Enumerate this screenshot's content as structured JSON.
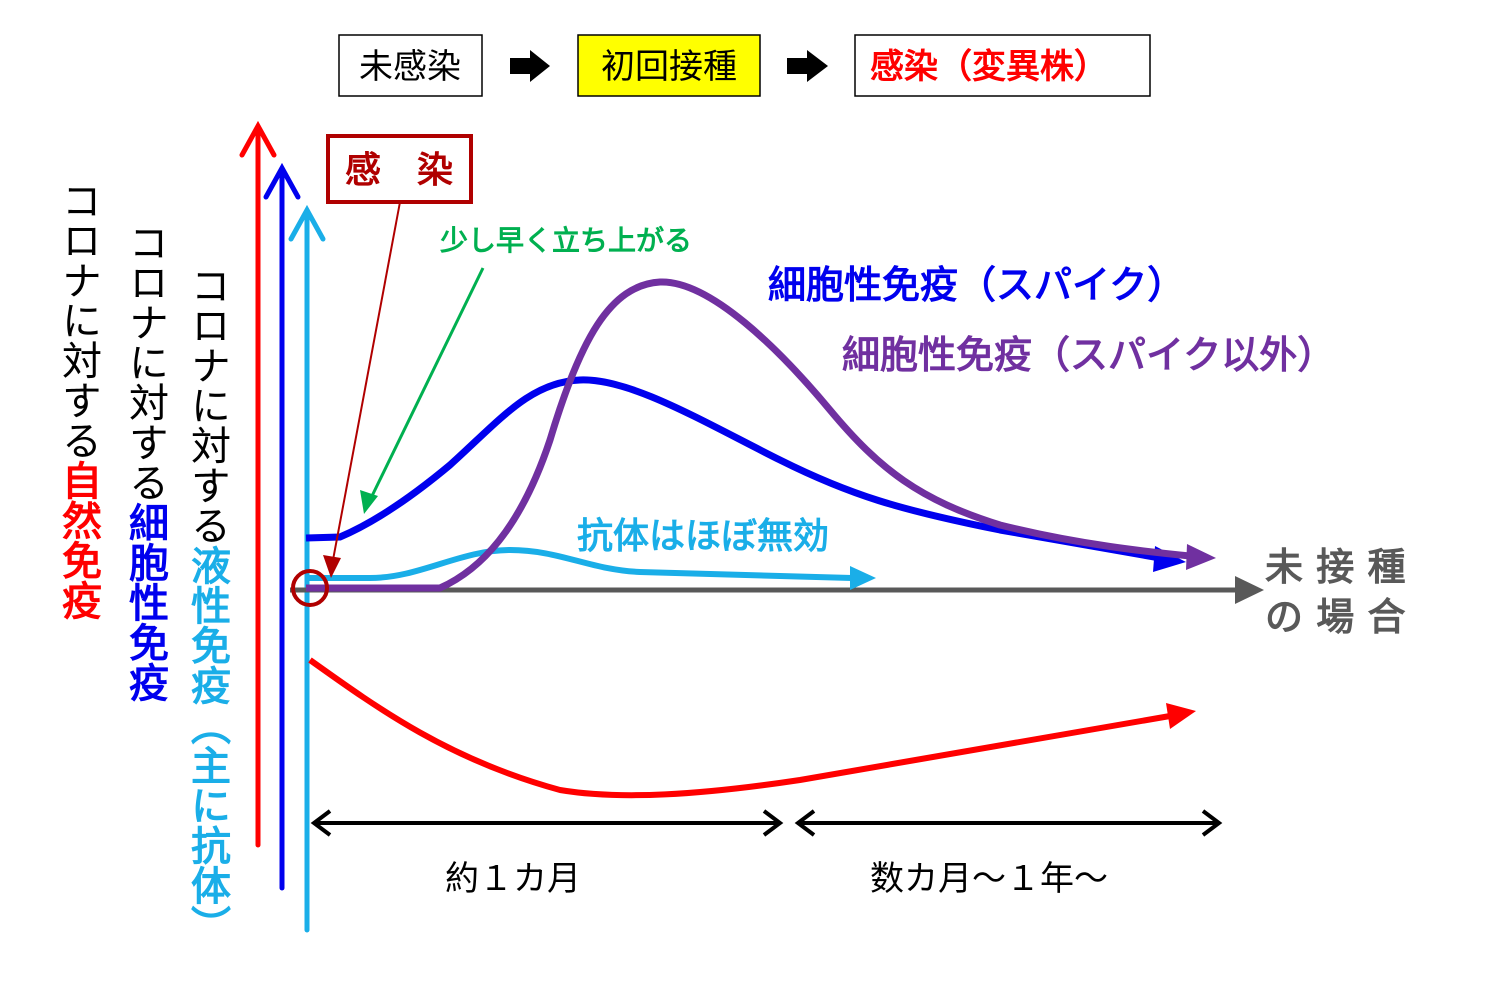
{
  "flow": {
    "step1": "未感染",
    "step2": "初回接種",
    "step3": "感染（変異株）",
    "arrow_icon": "right-arrow"
  },
  "y_axes": {
    "innate": {
      "prefix": "コロナに対する",
      "label": "自然免疫",
      "color": "#ff0000"
    },
    "cellular": {
      "prefix": "コロナに対する",
      "label": "細胞性免疫",
      "color": "#0000ee"
    },
    "humoral": {
      "prefix": "コロナに対する",
      "label": "液性免疫（主に抗体）",
      "color": "#1aaee8"
    }
  },
  "infection_box": "感　染",
  "annotation_early": "少し早く立ち上がる",
  "series": {
    "cell_spike": "細胞性免疫（スパイク）",
    "cell_non_spike": "細胞性免疫（スパイク以外）",
    "antibody": "抗体はほぼ無効"
  },
  "x_axis_label": {
    "line1": "未 接 種",
    "line2": "の 場 合"
  },
  "periods": {
    "first": "約１カ月",
    "second": "数カ月～１年～"
  }
}
